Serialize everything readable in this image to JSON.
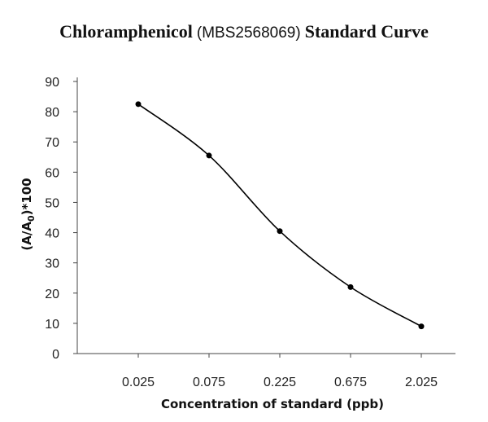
{
  "chart_data": {
    "type": "line",
    "title": {
      "prefix": "Chloramphenicol",
      "middle": "(MBS2568069)",
      "suffix": "Standard Curve"
    },
    "xlabel": "Concentration of standard (ppb)",
    "ylabel": {
      "main": "(A/A",
      "subscript": "0",
      "suffix": ")*100"
    },
    "categories": [
      "0.025",
      "0.075",
      "0.225",
      "0.675",
      "2.025"
    ],
    "values": [
      82.5,
      65.5,
      40.5,
      22,
      9
    ],
    "ylim": [
      0,
      90
    ],
    "yticks": [
      0,
      10,
      20,
      30,
      40,
      50,
      60,
      70,
      80,
      90
    ],
    "ytick_labels": [
      "0",
      "10",
      "20",
      "30",
      "40",
      "50",
      "60",
      "70",
      "80",
      "90"
    ],
    "grid": false,
    "smooth": true,
    "line_color": "#000000",
    "marker_color": "#000000"
  }
}
